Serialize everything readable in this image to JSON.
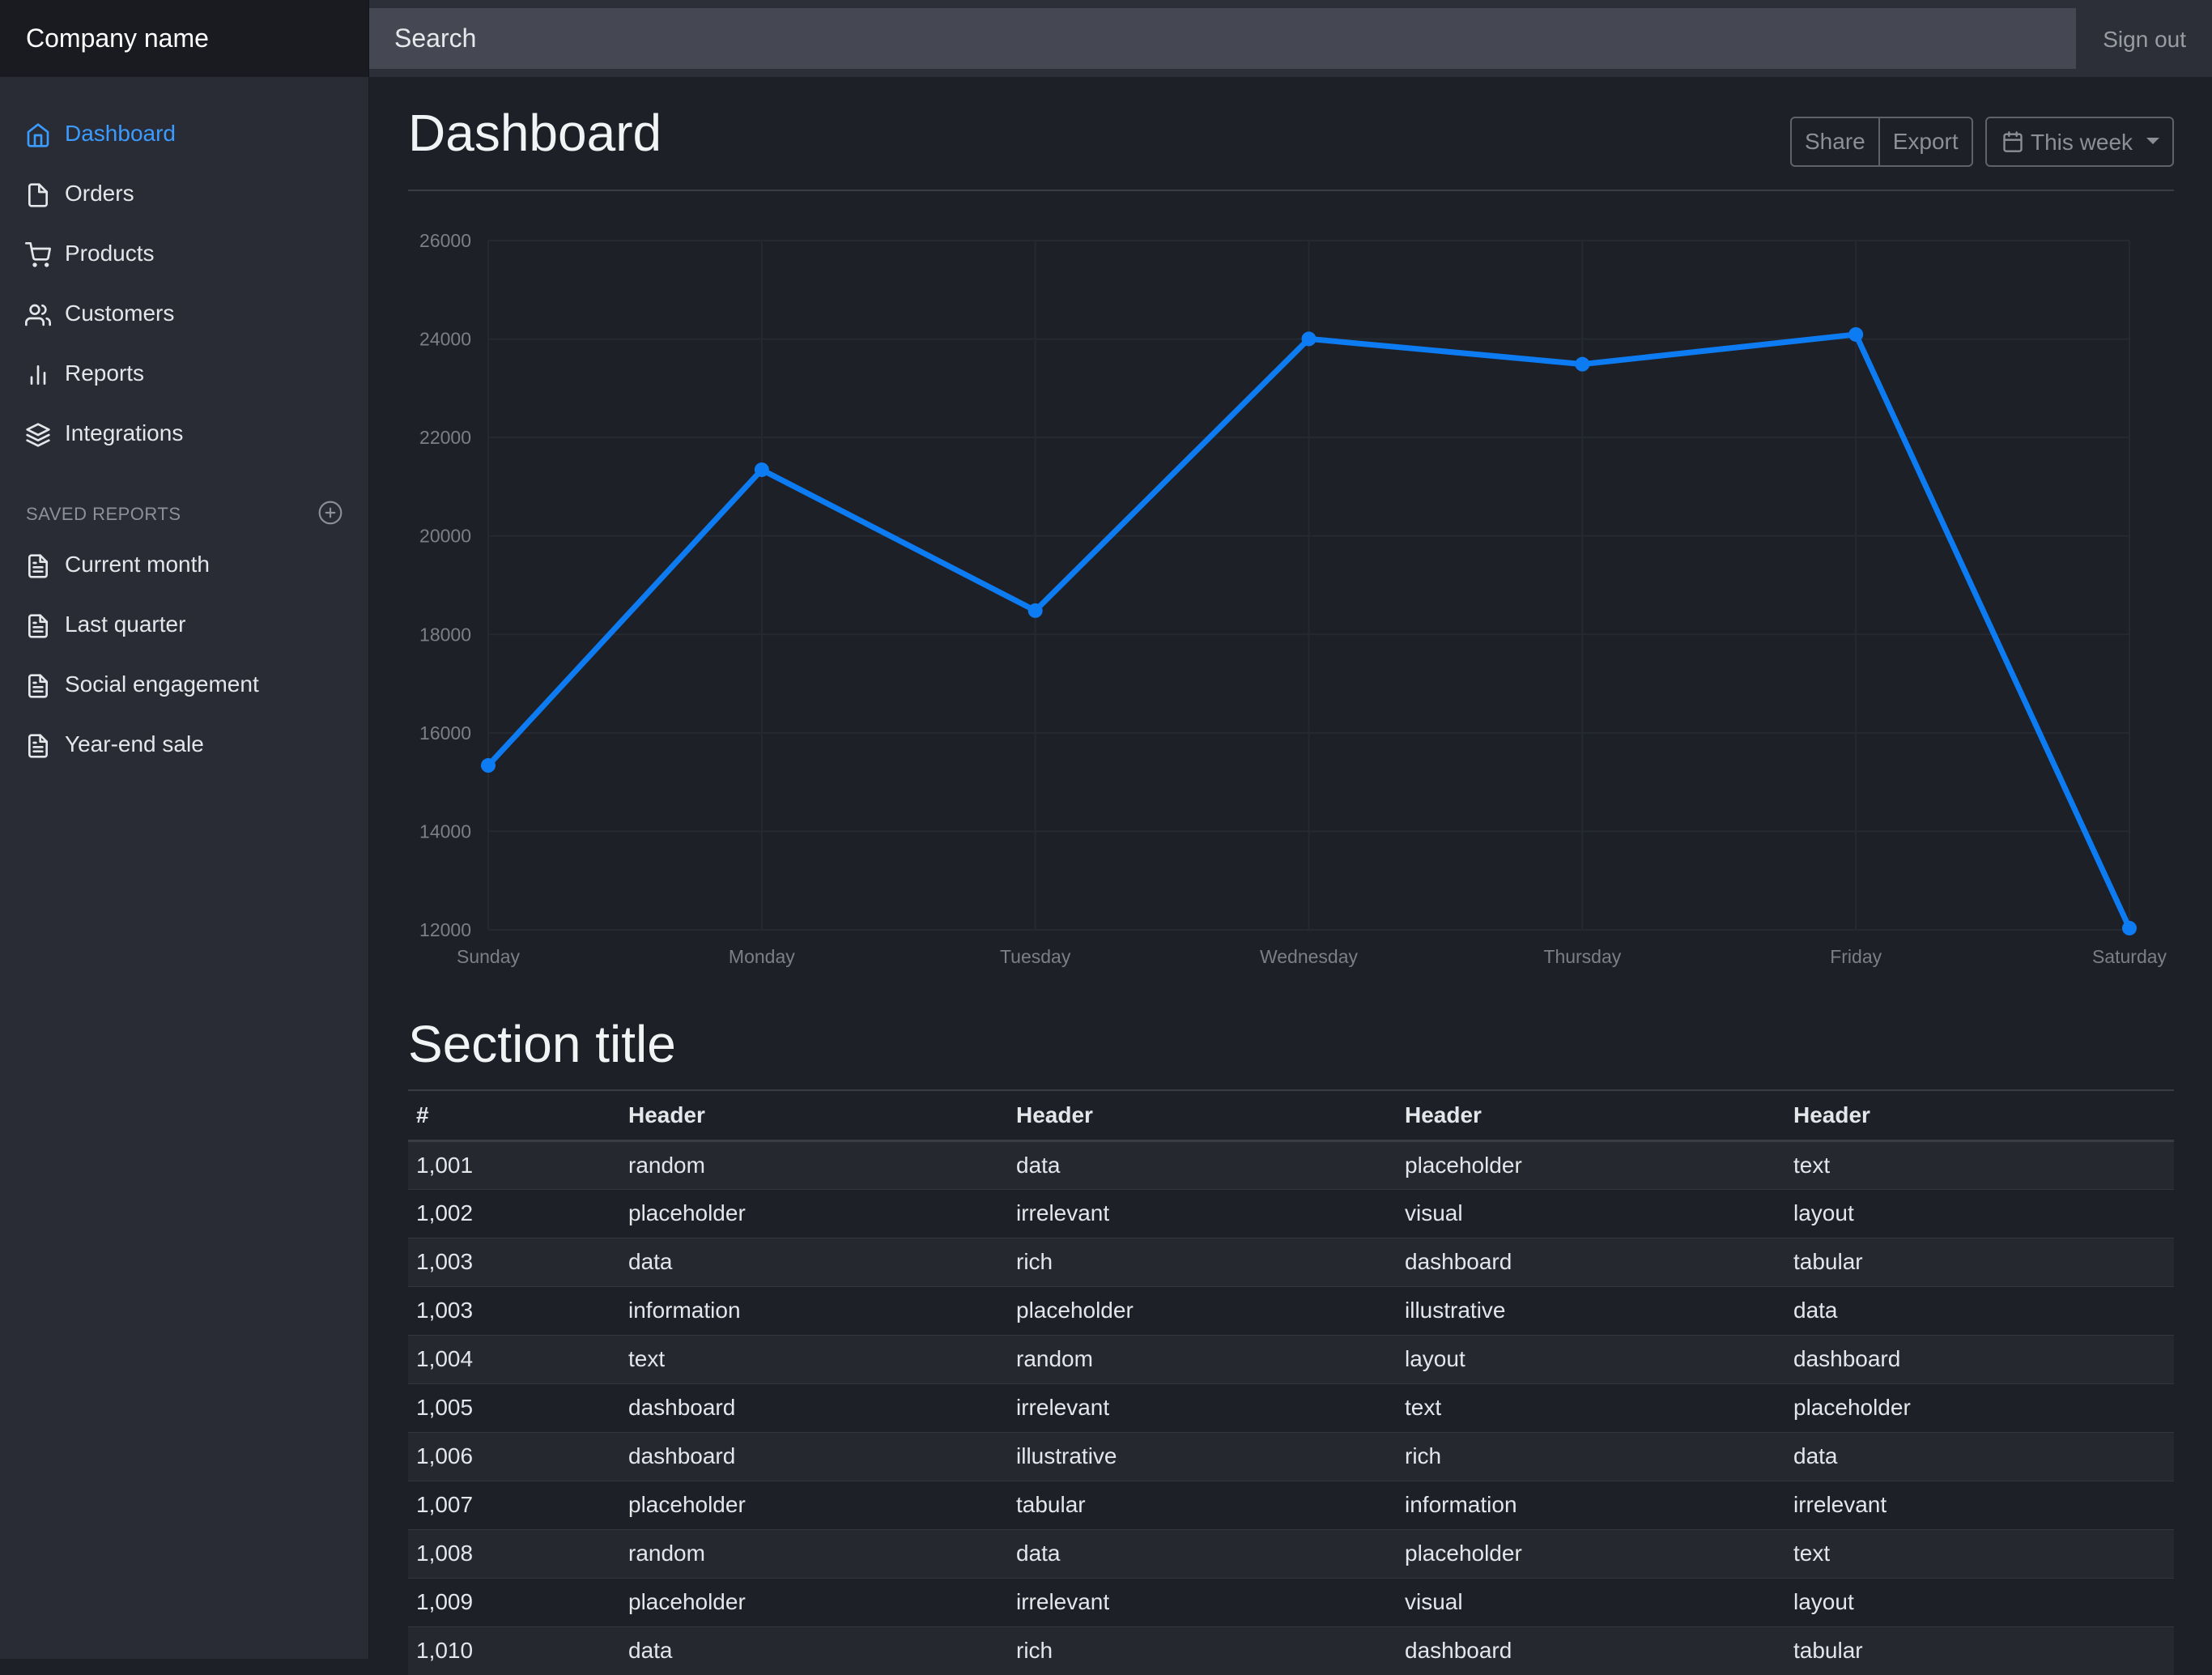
{
  "app": {
    "brand": "Company name",
    "search_placeholder": "Search",
    "sign_out": "Sign out"
  },
  "sidebar": {
    "items": [
      {
        "label": "Dashboard",
        "icon": "home-icon",
        "active": true
      },
      {
        "label": "Orders",
        "icon": "file-icon",
        "active": false
      },
      {
        "label": "Products",
        "icon": "cart-icon",
        "active": false
      },
      {
        "label": "Customers",
        "icon": "users-icon",
        "active": false
      },
      {
        "label": "Reports",
        "icon": "bar-chart-icon",
        "active": false
      },
      {
        "label": "Integrations",
        "icon": "layers-icon",
        "active": false
      }
    ],
    "saved_heading": "SAVED REPORTS",
    "saved_items": [
      {
        "label": "Current month",
        "icon": "file-text-icon"
      },
      {
        "label": "Last quarter",
        "icon": "file-text-icon"
      },
      {
        "label": "Social engagement",
        "icon": "file-text-icon"
      },
      {
        "label": "Year-end sale",
        "icon": "file-text-icon"
      }
    ]
  },
  "header": {
    "title": "Dashboard",
    "share": "Share",
    "export": "Export",
    "range": "This week"
  },
  "colors": {
    "accent": "#3b9bff",
    "line": "#0d7bf2"
  },
  "chart_data": {
    "type": "line",
    "categories": [
      "Sunday",
      "Monday",
      "Tuesday",
      "Wednesday",
      "Thursday",
      "Friday",
      "Saturday"
    ],
    "series": [
      {
        "values": [
          15339,
          21345,
          18483,
          24003,
          23489,
          24092,
          12034
        ]
      }
    ],
    "ylim": [
      12000,
      26000
    ],
    "yticks": [
      "12000",
      "14000",
      "16000",
      "18000",
      "20000",
      "22000",
      "24000",
      "26000"
    ],
    "grid": true,
    "legend": "none"
  },
  "section": {
    "title": "Section title",
    "columns": [
      "#",
      "Header",
      "Header",
      "Header",
      "Header"
    ],
    "rows": [
      [
        "1,001",
        "random",
        "data",
        "placeholder",
        "text"
      ],
      [
        "1,002",
        "placeholder",
        "irrelevant",
        "visual",
        "layout"
      ],
      [
        "1,003",
        "data",
        "rich",
        "dashboard",
        "tabular"
      ],
      [
        "1,003",
        "information",
        "placeholder",
        "illustrative",
        "data"
      ],
      [
        "1,004",
        "text",
        "random",
        "layout",
        "dashboard"
      ],
      [
        "1,005",
        "dashboard",
        "irrelevant",
        "text",
        "placeholder"
      ],
      [
        "1,006",
        "dashboard",
        "illustrative",
        "rich",
        "data"
      ],
      [
        "1,007",
        "placeholder",
        "tabular",
        "information",
        "irrelevant"
      ],
      [
        "1,008",
        "random",
        "data",
        "placeholder",
        "text"
      ],
      [
        "1,009",
        "placeholder",
        "irrelevant",
        "visual",
        "layout"
      ],
      [
        "1,010",
        "data",
        "rich",
        "dashboard",
        "tabular"
      ]
    ]
  }
}
